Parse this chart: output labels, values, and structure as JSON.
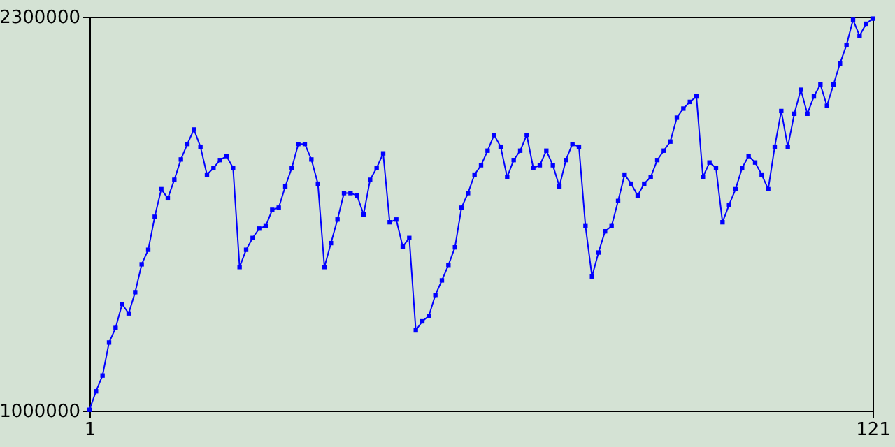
{
  "chart_data": {
    "type": "line",
    "x": [
      1,
      2,
      3,
      4,
      5,
      6,
      7,
      8,
      9,
      10,
      11,
      12,
      13,
      14,
      15,
      16,
      17,
      18,
      19,
      20,
      21,
      22,
      23,
      24,
      25,
      26,
      27,
      28,
      29,
      30,
      31,
      32,
      33,
      34,
      35,
      36,
      37,
      38,
      39,
      40,
      41,
      42,
      43,
      44,
      45,
      46,
      47,
      48,
      49,
      50,
      51,
      52,
      53,
      54,
      55,
      56,
      57,
      58,
      59,
      60,
      61,
      62,
      63,
      64,
      65,
      66,
      67,
      68,
      69,
      70,
      71,
      72,
      73,
      74,
      75,
      76,
      77,
      78,
      79,
      80,
      81,
      82,
      83,
      84,
      85,
      86,
      87,
      88,
      89,
      90,
      91,
      92,
      93,
      94,
      95,
      96,
      97,
      98,
      99,
      100,
      101,
      102,
      103,
      104,
      105,
      106,
      107,
      108,
      109,
      110,
      111,
      112,
      113,
      114,
      115,
      116,
      117,
      118,
      119,
      120,
      121
    ],
    "series": [
      {
        "color": "#0000ff",
        "values": [
          1003000,
          1064000,
          1116000,
          1225000,
          1273000,
          1352000,
          1321000,
          1391000,
          1483000,
          1531000,
          1640000,
          1731000,
          1701000,
          1762000,
          1829000,
          1880000,
          1928000,
          1871000,
          1779000,
          1801000,
          1827000,
          1840000,
          1801000,
          1474000,
          1531000,
          1570000,
          1601000,
          1609000,
          1663000,
          1670000,
          1740000,
          1801000,
          1880000,
          1880000,
          1829000,
          1749000,
          1474000,
          1553000,
          1631000,
          1718000,
          1718000,
          1710000,
          1648000,
          1762000,
          1801000,
          1849000,
          1622000,
          1631000,
          1541000,
          1570000,
          1265000,
          1295000,
          1313000,
          1382000,
          1430000,
          1481000,
          1539000,
          1670000,
          1718000,
          1779000,
          1810000,
          1858000,
          1910000,
          1871000,
          1771000,
          1827000,
          1858000,
          1910000,
          1801000,
          1810000,
          1858000,
          1810000,
          1740000,
          1827000,
          1880000,
          1871000,
          1609000,
          1443000,
          1522000,
          1592000,
          1609000,
          1692000,
          1779000,
          1749000,
          1710000,
          1749000,
          1771000,
          1827000,
          1858000,
          1888000,
          1967000,
          1997000,
          2019000,
          2037000,
          1771000,
          1819000,
          1801000,
          1622000,
          1679000,
          1731000,
          1801000,
          1840000,
          1819000,
          1779000,
          1731000,
          1871000,
          1989000,
          1871000,
          1980000,
          2059000,
          1980000,
          2037000,
          2076000,
          2006000,
          2076000,
          2146000,
          2207000,
          2290000,
          2237000,
          2277000,
          2294000
        ]
      }
    ],
    "xlim": [
      1,
      121
    ],
    "xticks": [
      1,
      121
    ],
    "ylim": [
      1000000,
      2300000
    ],
    "yticks": [
      1000000,
      2300000
    ],
    "marker": "square",
    "line_style": "solid"
  }
}
